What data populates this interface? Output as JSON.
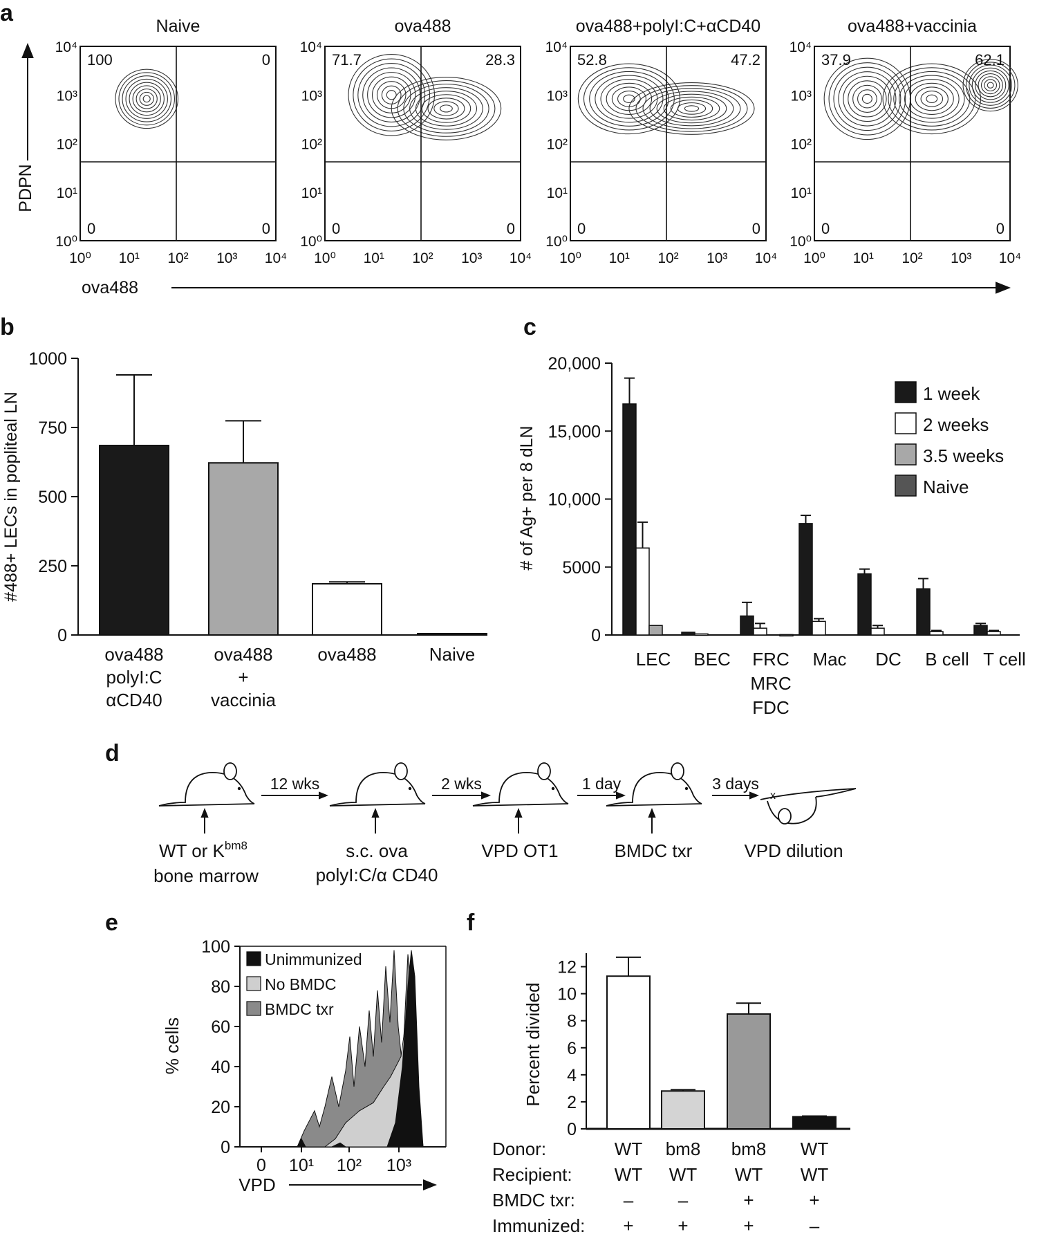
{
  "panel_letters": [
    "a",
    "b",
    "c",
    "d",
    "e",
    "f"
  ],
  "panel_a": {
    "y_axis_label": "PDPN",
    "x_axis_label": "ova488",
    "axis_ticks": [
      "10⁰",
      "10¹",
      "10²",
      "10³",
      "10⁴"
    ],
    "plots": [
      {
        "title": "Naive",
        "q_ul": "100",
        "q_ur": "0",
        "q_ll": "0",
        "q_lr": "0"
      },
      {
        "title": "ova488",
        "q_ul": "71.7",
        "q_ur": "28.3",
        "q_ll": "0",
        "q_lr": "0"
      },
      {
        "title": "ova488+polyI:C+αCD40",
        "q_ul": "52.8",
        "q_ur": "47.2",
        "q_ll": "0",
        "q_lr": "0"
      },
      {
        "title": "ova488+vaccinia",
        "q_ul": "37.9",
        "q_ur": "62.1",
        "q_ll": "0",
        "q_lr": "0"
      }
    ]
  },
  "chart_data": [
    {
      "panel": "b",
      "type": "bar",
      "categories": [
        [
          "ova488",
          "polyI:C",
          "αCD40"
        ],
        [
          "ova488",
          "+",
          "vaccinia"
        ],
        [
          "ova488"
        ],
        [
          "Naive"
        ]
      ],
      "values": [
        685,
        622,
        185,
        5
      ],
      "errors": [
        255,
        152,
        7,
        0
      ],
      "colors": [
        "#1a1a1a",
        "#a8a8a8",
        "#ffffff",
        "#ffffff"
      ],
      "ylabel": "#488+ LECs in popliteal LN",
      "ylim": [
        0,
        1000
      ],
      "yticks": [
        "0",
        "250",
        "500",
        "750",
        "1000"
      ]
    },
    {
      "panel": "c",
      "type": "bar",
      "categories": [
        [
          "LEC"
        ],
        [
          "BEC"
        ],
        [
          "FRC",
          "MRC",
          "FDC"
        ],
        [
          "Mac"
        ],
        [
          "DC"
        ],
        [
          "B cell"
        ],
        [
          "T cell"
        ]
      ],
      "series": [
        {
          "name": "1 week",
          "color": "#1a1a1a",
          "values": [
            17000,
            200,
            1400,
            8200,
            4500,
            3400,
            700
          ],
          "errors": [
            1900,
            0,
            1000,
            600,
            350,
            750,
            150
          ]
        },
        {
          "name": "2 weeks",
          "color": "#ffffff",
          "values": [
            6400,
            80,
            500,
            1000,
            500,
            250,
            250
          ],
          "errors": [
            1900,
            0,
            350,
            200,
            200,
            80,
            80
          ]
        },
        {
          "name": "3.5 weeks",
          "color": "#a8a8a8",
          "values": [
            700,
            0,
            0,
            0,
            0,
            0,
            0
          ],
          "errors": [
            0,
            0,
            0,
            0,
            0,
            0,
            0
          ]
        },
        {
          "name": "Naive",
          "color": "#555555",
          "values": [
            0,
            0,
            30,
            0,
            0,
            0,
            0
          ],
          "errors": [
            0,
            0,
            0,
            0,
            0,
            0,
            0
          ]
        }
      ],
      "ylabel": "# of Ag+ per 8 dLN",
      "ylim": [
        0,
        20000
      ],
      "yticks": [
        "0",
        "5000",
        "10,000",
        "15,000",
        "20,000"
      ],
      "legend_position": "top-right"
    },
    {
      "panel": "e",
      "type": "area",
      "series": [
        {
          "name": "Unimmunized",
          "color": "#111111"
        },
        {
          "name": "No BMDC",
          "color": "#cfcfcf"
        },
        {
          "name": "BMDC txr",
          "color": "#8a8a8a"
        }
      ],
      "ylabel": "% cells",
      "xlabel": "VPD",
      "ylim": [
        0,
        100
      ],
      "yticks": [
        "0",
        "20",
        "40",
        "60",
        "80",
        "100"
      ],
      "xticks": [
        "0",
        "10¹",
        "10²",
        "10³"
      ]
    },
    {
      "panel": "f",
      "type": "bar",
      "values": [
        11.3,
        2.8,
        8.5,
        0.9
      ],
      "errors": [
        1.4,
        0.1,
        0.8,
        0.05
      ],
      "colors": [
        "#ffffff",
        "#d4d4d4",
        "#999999",
        "#111111"
      ],
      "ylabel": "Percent divided",
      "ylim": [
        0,
        13
      ],
      "yticks": [
        "0",
        "2",
        "4",
        "6",
        "8",
        "10",
        "12"
      ],
      "table_row_labels": [
        "Donor:",
        "Recipient:",
        "BMDC txr:",
        "Immunized:"
      ],
      "table_values": [
        [
          "WT",
          "bm8",
          "bm8",
          "WT"
        ],
        [
          "WT",
          "WT",
          "WT",
          "WT"
        ],
        [
          "–",
          "–",
          "+",
          "+"
        ],
        [
          "+",
          "+",
          "+",
          "–"
        ]
      ]
    }
  ],
  "panel_d": {
    "steps": [
      {
        "arrow": "12 wks",
        "caption": [
          "WT or K",
          "bm8",
          "bone marrow"
        ]
      },
      {
        "arrow": "2 wks",
        "caption": [
          "s.c. ova",
          "polyI:C/α CD40"
        ]
      },
      {
        "arrow": "1 day",
        "caption": [
          "VPD OT1"
        ]
      },
      {
        "arrow": "3 days",
        "caption": [
          "BMDC txr"
        ]
      },
      {
        "arrow": "",
        "caption": [
          "VPD dilution"
        ]
      }
    ]
  }
}
